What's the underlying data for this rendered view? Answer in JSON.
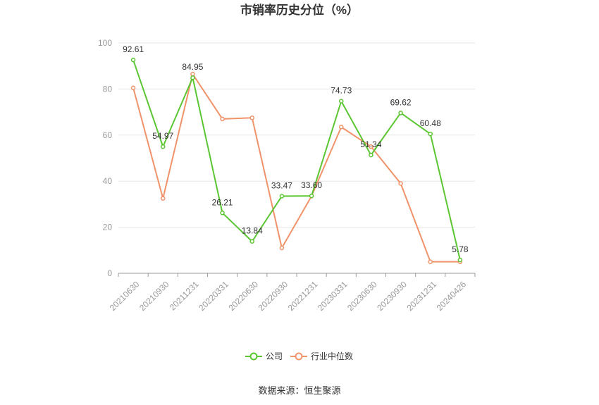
{
  "chart_data": {
    "type": "line",
    "title": "市销率历史分位（%）",
    "xlabel": "",
    "ylabel": "",
    "ylim": [
      0,
      100
    ],
    "yticks": [
      0,
      20,
      40,
      60,
      80,
      100
    ],
    "categories": [
      "20210630",
      "20210930",
      "20211231",
      "20220331",
      "20220630",
      "20220930",
      "20221231",
      "20230331",
      "20230630",
      "20230930",
      "20231231",
      "20240426"
    ],
    "series": [
      {
        "name": "公司",
        "color": "#5bc632",
        "values": [
          92.61,
          54.97,
          84.95,
          26.21,
          13.84,
          33.47,
          33.6,
          74.73,
          51.34,
          69.62,
          60.48,
          5.78
        ],
        "labels": [
          "92.61",
          "54.97",
          "84.95",
          "26.21",
          "13.84",
          "33.47",
          "33.60",
          "74.73",
          "51.34",
          "69.62",
          "60.48",
          "5.78"
        ]
      },
      {
        "name": "行业中位数",
        "color": "#f0936a",
        "values": [
          80.5,
          32.5,
          86.5,
          67.0,
          67.5,
          11.0,
          33.5,
          63.5,
          55.0,
          39.0,
          5.0,
          5.0
        ]
      }
    ],
    "grid": true,
    "legend": "bottom-center"
  },
  "source_text": "数据来源：恒生聚源"
}
